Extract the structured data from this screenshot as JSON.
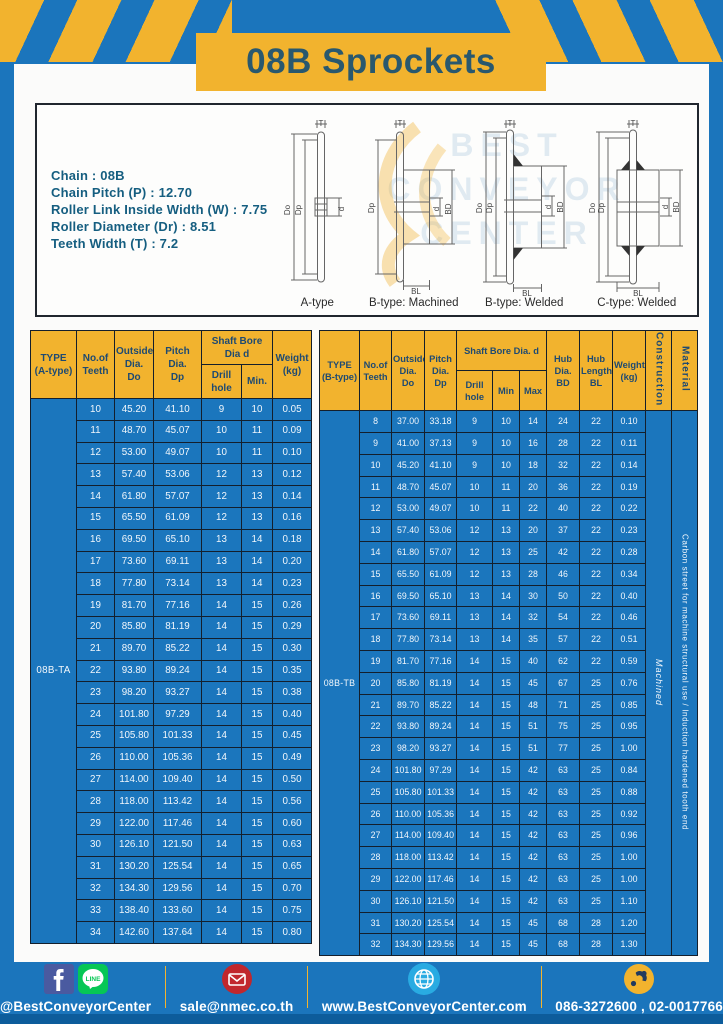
{
  "page": {
    "title": "08B Sprockets"
  },
  "colors": {
    "frame_blue": "#1b75bc",
    "accent_yellow": "#f2b32e",
    "title_text": "#29586e",
    "header_text": "#1e4a72",
    "cell_blue": "#1b76bd",
    "cell_text": "#f2f7fc",
    "table_border": "#141f2c",
    "footer_dark_strip": "#0d5c9b",
    "facebook_blue": "#3b5998",
    "line_green": "#06c755",
    "mail_red": "#c1272d",
    "globe_blue": "#29abe2",
    "phone_yellow": "#f2b32e"
  },
  "specs": {
    "lines": [
      "Chain  : 08B",
      "Chain Pitch (P)  :  12.70",
      "Roller Link Inside Width (W)  :  7.75",
      "Roller Diameter (Dr)  : 8.51",
      "Teeth Width (T)  :  7.2"
    ]
  },
  "diagrams": {
    "labels": [
      "A-type",
      "B-type: Machined",
      "B-type: Welded",
      "C-type: Welded"
    ],
    "dims": {
      "T": "T",
      "Do": "Do",
      "Dp": "Dp",
      "d": "d",
      "BD": "BD",
      "BL": "BL"
    },
    "watermark_lines": [
      "BEST",
      "CONVEYOR",
      "CENTER"
    ]
  },
  "tables": {
    "left": {
      "type_label": "08B-TA",
      "headers": {
        "type": "TYPE\n(A-type)",
        "teeth": "No.of\nTeeth",
        "outside_dia": "Outside\nDia.\nDo",
        "pitch_dia": "Pitch Dia.\nDp",
        "shaft_bore": "Shaft Bore Dia d",
        "drill_hole": "Drill hole",
        "min": "Min.",
        "weight": "Weight\n(kg)"
      },
      "rows": [
        [
          10,
          "45.20",
          "41.10",
          9,
          10,
          "0.05"
        ],
        [
          11,
          "48.70",
          "45.07",
          10,
          11,
          "0.09"
        ],
        [
          12,
          "53.00",
          "49.07",
          10,
          11,
          "0.10"
        ],
        [
          13,
          "57.40",
          "53.06",
          12,
          13,
          "0.12"
        ],
        [
          14,
          "61.80",
          "57.07",
          12,
          13,
          "0.14"
        ],
        [
          15,
          "65.50",
          "61.09",
          12,
          13,
          "0.16"
        ],
        [
          16,
          "69.50",
          "65.10",
          13,
          14,
          "0.18"
        ],
        [
          17,
          "73.60",
          "69.11",
          13,
          14,
          "0.20"
        ],
        [
          18,
          "77.80",
          "73.14",
          13,
          14,
          "0.23"
        ],
        [
          19,
          "81.70",
          "77.16",
          14,
          15,
          "0.26"
        ],
        [
          20,
          "85.80",
          "81.19",
          14,
          15,
          "0.29"
        ],
        [
          21,
          "89.70",
          "85.22",
          14,
          15,
          "0.30"
        ],
        [
          22,
          "93.80",
          "89.24",
          14,
          15,
          "0.35"
        ],
        [
          23,
          "98.20",
          "93.27",
          14,
          15,
          "0.38"
        ],
        [
          24,
          "101.80",
          "97.29",
          14,
          15,
          "0.40"
        ],
        [
          25,
          "105.80",
          "101.33",
          14,
          15,
          "0.45"
        ],
        [
          26,
          "110.00",
          "105.36",
          14,
          15,
          "0.49"
        ],
        [
          27,
          "114.00",
          "109.40",
          14,
          15,
          "0.50"
        ],
        [
          28,
          "118.00",
          "113.42",
          14,
          15,
          "0.56"
        ],
        [
          29,
          "122.00",
          "117.46",
          14,
          15,
          "0.60"
        ],
        [
          30,
          "126.10",
          "121.50",
          14,
          15,
          "0.63"
        ],
        [
          31,
          "130.20",
          "125.54",
          14,
          15,
          "0.65"
        ],
        [
          32,
          "134.30",
          "129.56",
          14,
          15,
          "0.70"
        ],
        [
          33,
          "138.40",
          "133.60",
          14,
          15,
          "0.75"
        ],
        [
          34,
          "142.60",
          "137.64",
          14,
          15,
          "0.80"
        ]
      ]
    },
    "right": {
      "type_label": "08B-TB",
      "construction": "Machined",
      "material": "Carbon street for machine structural use / Induction hardened tooth end",
      "headers": {
        "type": "TYPE\n(B-type)",
        "teeth": "No.of\nTeeth",
        "outside_dia": "Outside\nDia.\nDo",
        "pitch_dia": "Pitch\nDia.\nDp",
        "shaft_bore": "Shaft Bore Dia.  d",
        "drill_hole": "Drill hole",
        "min": "Min",
        "max": "Max",
        "hub_dia": "Hub\nDia.\nBD",
        "hub_length": "Hub\nLength\nBL",
        "weight": "Weight\n(kg)",
        "construction": "Construction",
        "material": "Material"
      },
      "rows": [
        [
          8,
          "37.00",
          "33.18",
          9,
          10,
          14,
          24,
          22,
          "0.10"
        ],
        [
          9,
          "41.00",
          "37.13",
          9,
          10,
          16,
          28,
          22,
          "0.11"
        ],
        [
          10,
          "45.20",
          "41.10",
          9,
          10,
          18,
          32,
          22,
          "0.14"
        ],
        [
          11,
          "48.70",
          "45.07",
          10,
          11,
          20,
          36,
          22,
          "0.19"
        ],
        [
          12,
          "53.00",
          "49.07",
          10,
          11,
          22,
          40,
          22,
          "0.22"
        ],
        [
          13,
          "57.40",
          "53.06",
          12,
          13,
          20,
          37,
          22,
          "0.23"
        ],
        [
          14,
          "61.80",
          "57.07",
          12,
          13,
          25,
          42,
          22,
          "0.28"
        ],
        [
          15,
          "65.50",
          "61.09",
          12,
          13,
          28,
          46,
          22,
          "0.34"
        ],
        [
          16,
          "69.50",
          "65.10",
          13,
          14,
          30,
          50,
          22,
          "0.40"
        ],
        [
          17,
          "73.60",
          "69.11",
          13,
          14,
          32,
          54,
          22,
          "0.46"
        ],
        [
          18,
          "77.80",
          "73.14",
          13,
          14,
          35,
          57,
          22,
          "0.51"
        ],
        [
          19,
          "81.70",
          "77.16",
          14,
          15,
          40,
          62,
          22,
          "0.59"
        ],
        [
          20,
          "85.80",
          "81.19",
          14,
          15,
          45,
          67,
          25,
          "0.76"
        ],
        [
          21,
          "89.70",
          "85.22",
          14,
          15,
          48,
          71,
          25,
          "0.85"
        ],
        [
          22,
          "93.80",
          "89.24",
          14,
          15,
          51,
          75,
          25,
          "0.95"
        ],
        [
          23,
          "98.20",
          "93.27",
          14,
          15,
          51,
          77,
          25,
          "1.00"
        ],
        [
          24,
          "101.80",
          "97.29",
          14,
          15,
          42,
          63,
          25,
          "0.84"
        ],
        [
          25,
          "105.80",
          "101.33",
          14,
          15,
          42,
          63,
          25,
          "0.88"
        ],
        [
          26,
          "110.00",
          "105.36",
          14,
          15,
          42,
          63,
          25,
          "0.92"
        ],
        [
          27,
          "114.00",
          "109.40",
          14,
          15,
          42,
          63,
          25,
          "0.96"
        ],
        [
          28,
          "118.00",
          "113.42",
          14,
          15,
          42,
          63,
          25,
          "1.00"
        ],
        [
          29,
          "122.00",
          "117.46",
          14,
          15,
          42,
          63,
          25,
          "1.00"
        ],
        [
          30,
          "126.10",
          "121.50",
          14,
          15,
          42,
          63,
          25,
          "1.10"
        ],
        [
          31,
          "130.20",
          "125.54",
          14,
          15,
          45,
          68,
          28,
          "1.20"
        ],
        [
          32,
          "134.30",
          "129.56",
          14,
          15,
          45,
          68,
          28,
          "1.30"
        ]
      ]
    }
  },
  "footer": {
    "social_handle": "@BestConveyorCenter",
    "line_label": "LINE",
    "email": "sale@nmec.co.th",
    "website": "www.BestConveyorCenter.com",
    "phones": "086-3272600 , 02-0017766"
  }
}
